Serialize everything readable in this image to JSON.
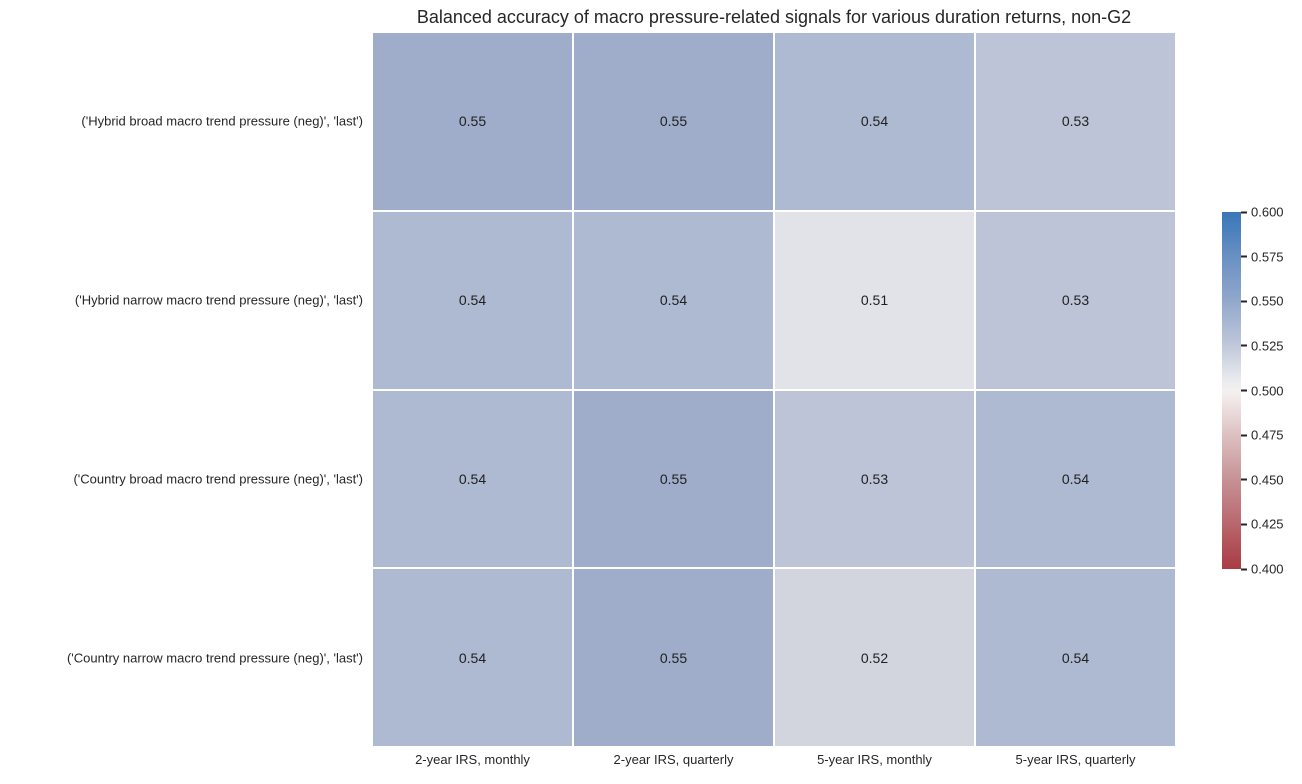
{
  "chart_data": {
    "type": "heatmap",
    "title": "Balanced accuracy of macro pressure-related signals for various duration returns, non-G2",
    "rows": [
      "('Hybrid broad macro trend pressure (neg)', 'last')",
      "('Hybrid narrow macro trend pressure (neg)', 'last')",
      "('Country broad macro trend pressure (neg)', 'last')",
      "('Country narrow macro trend pressure (neg)', 'last')"
    ],
    "columns": [
      "2-year IRS, monthly",
      "2-year IRS, quarterly",
      "5-year IRS, monthly",
      "5-year IRS, quarterly"
    ],
    "values": [
      [
        0.55,
        0.55,
        0.54,
        0.53
      ],
      [
        0.54,
        0.54,
        0.51,
        0.53
      ],
      [
        0.54,
        0.55,
        0.53,
        0.54
      ],
      [
        0.54,
        0.55,
        0.52,
        0.54
      ]
    ],
    "value_decimals": 2,
    "cell_colors": {
      "0.51": "#e1e3e8",
      "0.52": "#d2d5de",
      "0.53": "#bdc4d7",
      "0.54": "#aeb9d2",
      "0.55": "#9fadca"
    },
    "annotation_color": "#1f1f1f",
    "grid_on": false,
    "colorbar": {
      "position": "right",
      "min": 0.4,
      "max": 0.6,
      "ticks": [
        "0.600",
        "0.575",
        "0.550",
        "0.525",
        "0.500",
        "0.475",
        "0.450",
        "0.425",
        "0.400"
      ],
      "gradient": [
        {
          "pos": 0,
          "color": "#3a76b8"
        },
        {
          "pos": 6,
          "color": "#4f82bd"
        },
        {
          "pos": 12.5,
          "color": "#6990c3"
        },
        {
          "pos": 25,
          "color": "#92a8cb"
        },
        {
          "pos": 37.5,
          "color": "#c0c8da"
        },
        {
          "pos": 47,
          "color": "#e9eaee"
        },
        {
          "pos": 50,
          "color": "#f3f1f0"
        },
        {
          "pos": 53,
          "color": "#f0e7e6"
        },
        {
          "pos": 62.5,
          "color": "#ddc0c1"
        },
        {
          "pos": 75,
          "color": "#c69295"
        },
        {
          "pos": 87.5,
          "color": "#b9666d"
        },
        {
          "pos": 94,
          "color": "#b04f57"
        },
        {
          "pos": 100,
          "color": "#a93c44"
        }
      ]
    }
  }
}
